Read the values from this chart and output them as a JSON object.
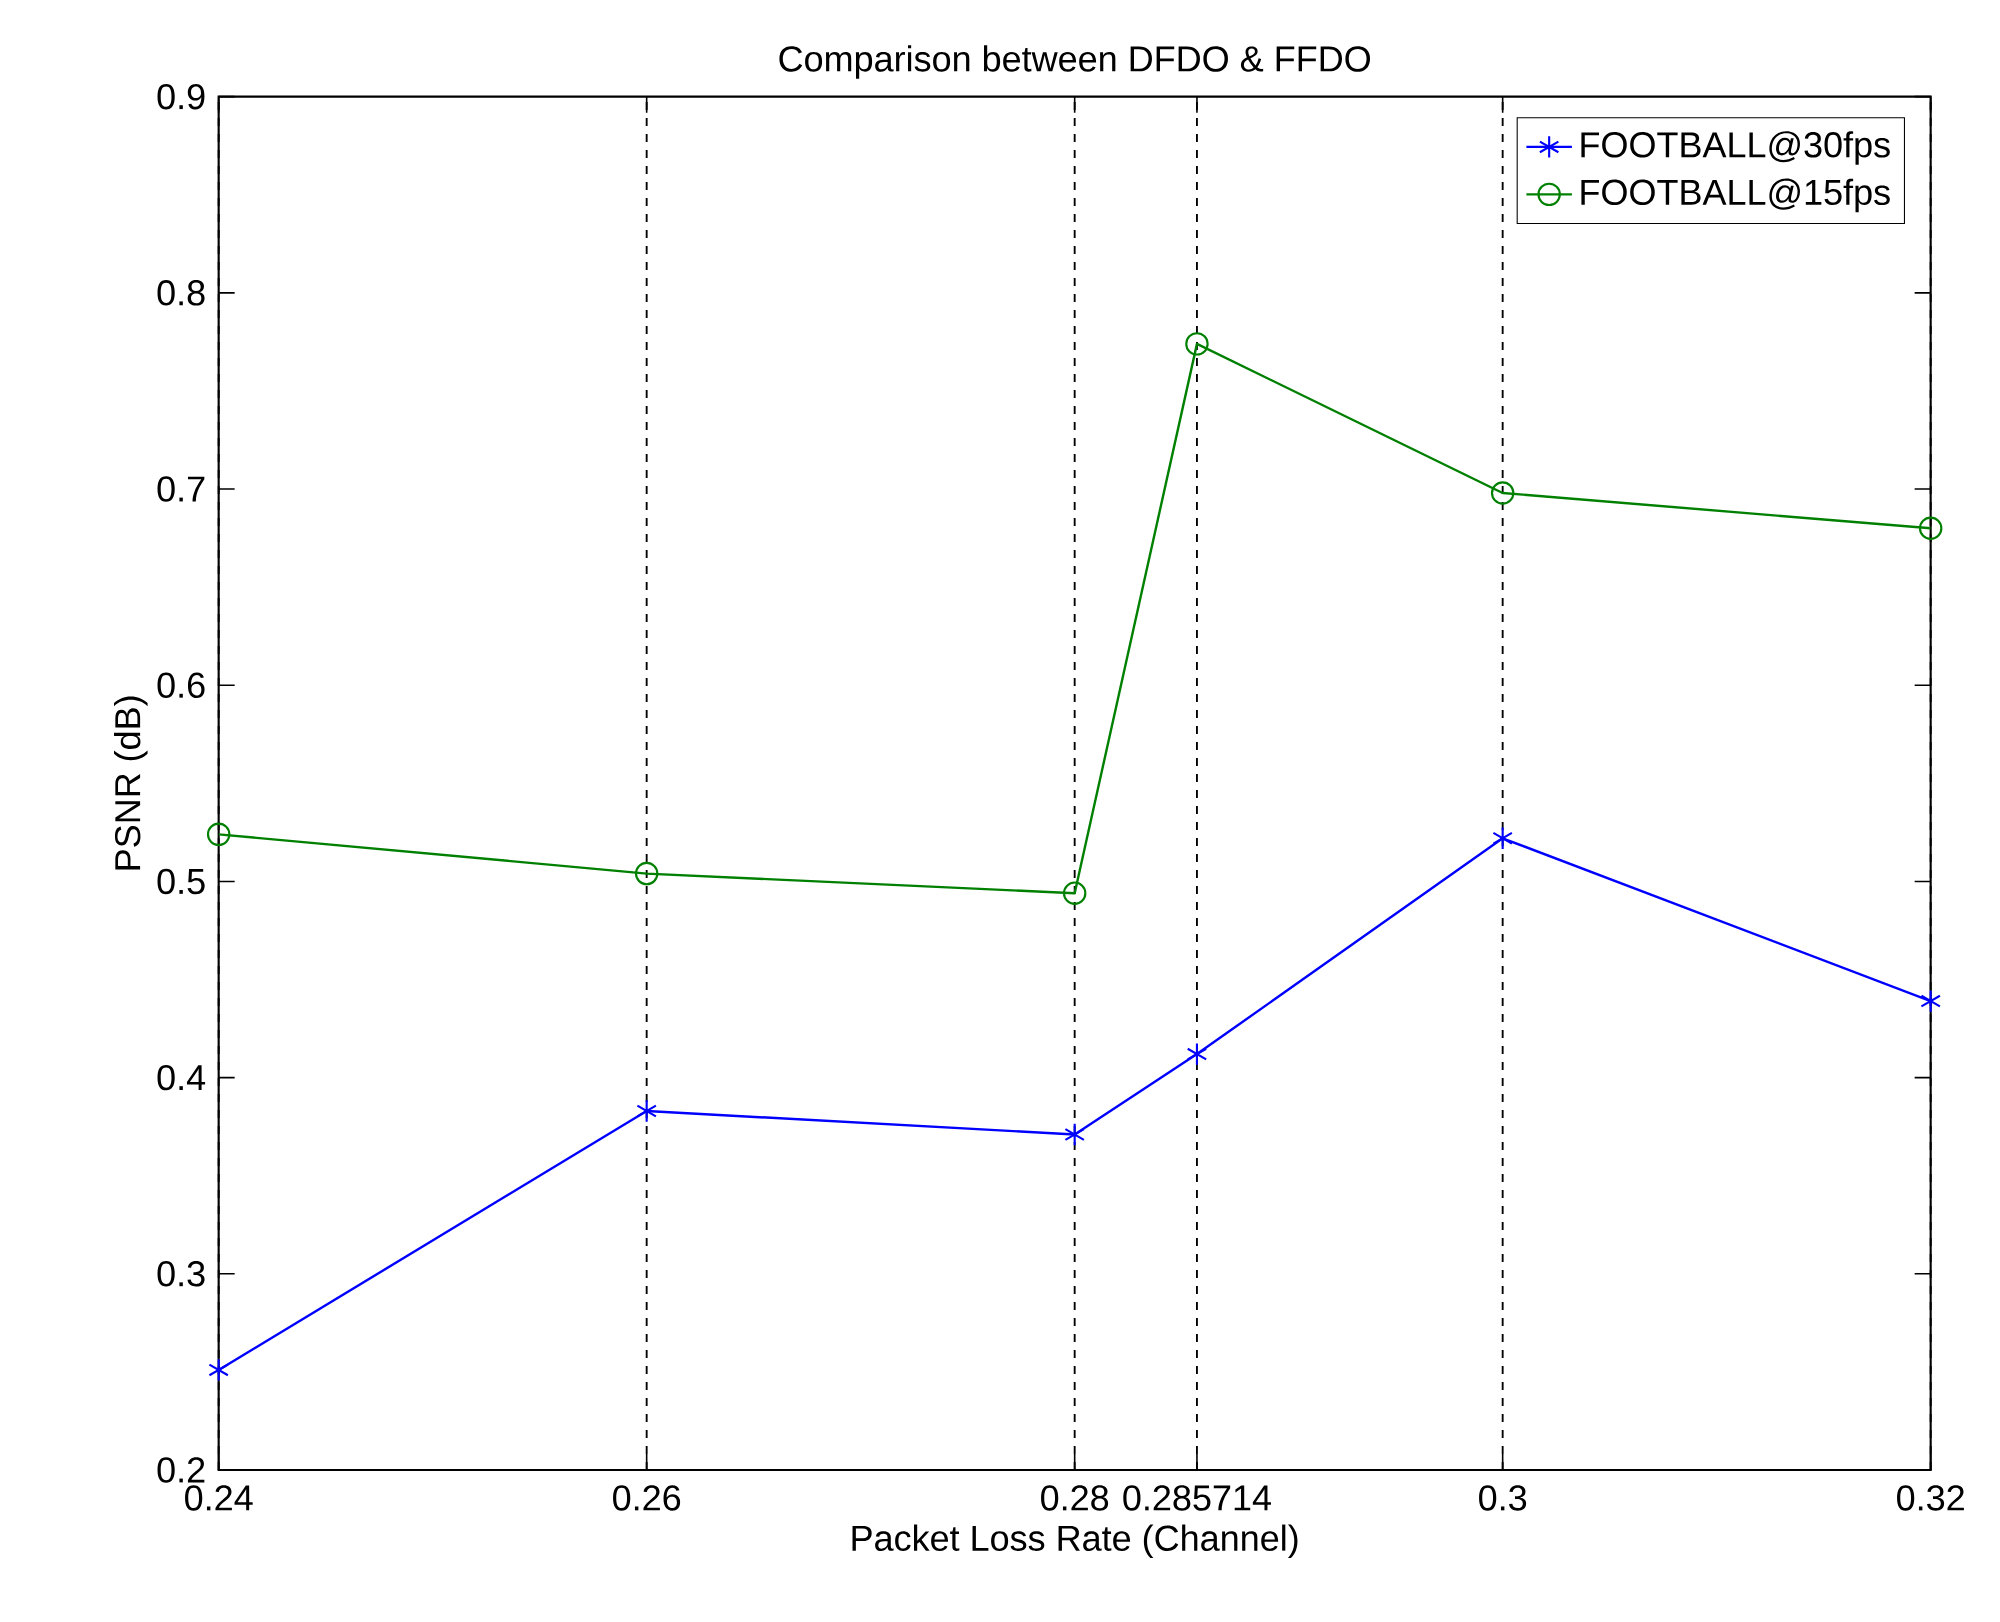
{
  "chart_data": {
    "type": "line",
    "title": "Comparison between DFDO & FFDO",
    "xlabel": "Packet Loss Rate (Channel)",
    "ylabel": "PSNR (dB)",
    "x": [
      0.24,
      0.26,
      0.28,
      0.285714,
      0.3,
      0.32
    ],
    "series": [
      {
        "name": "FOOTBALL@30fps",
        "color": "#0000ff",
        "marker": "cross",
        "values": [
          0.251,
          0.383,
          0.371,
          0.412,
          0.522,
          0.439
        ]
      },
      {
        "name": "FOOTBALL@15fps",
        "color": "#008000",
        "marker": "circle",
        "values": [
          0.524,
          0.504,
          0.494,
          0.774,
          0.698,
          0.68
        ]
      }
    ],
    "xlim": [
      0.24,
      0.32
    ],
    "ylim": [
      0.2,
      0.9
    ],
    "xticks": [
      0.24,
      0.26,
      0.28,
      0.285714,
      0.3,
      0.32
    ],
    "yticks": [
      0.2,
      0.3,
      0.4,
      0.5,
      0.6,
      0.7,
      0.8,
      0.9
    ],
    "grid": "x",
    "legend": "top right",
    "line_style": "solid"
  }
}
